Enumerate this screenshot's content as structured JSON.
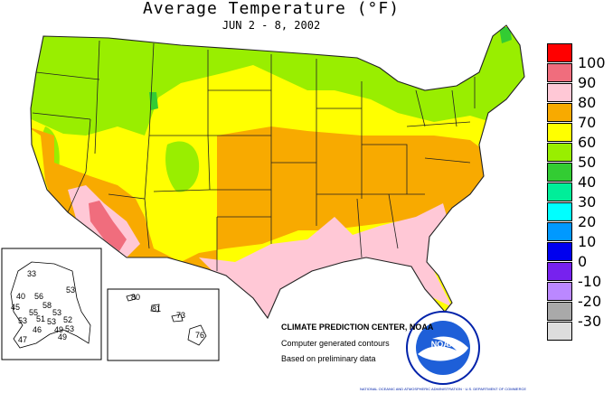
{
  "header": {
    "title": "Average Temperature (°F)",
    "subtitle": "JUN 2 - 8, 2002"
  },
  "legend": {
    "items": [
      {
        "label": "100",
        "color": "#ff0000"
      },
      {
        "label": "90",
        "color": "#f06d7d"
      },
      {
        "label": "80",
        "color": "#ffc8d6"
      },
      {
        "label": "70",
        "color": "#f8aa00"
      },
      {
        "label": "60",
        "color": "#ffff00"
      },
      {
        "label": "50",
        "color": "#99ee00"
      },
      {
        "label": "40",
        "color": "#33cc33"
      },
      {
        "label": "30",
        "color": "#00ee99"
      },
      {
        "label": "20",
        "color": "#00ffff"
      },
      {
        "label": "10",
        "color": "#0099ff"
      },
      {
        "label": "0",
        "color": "#0000ee"
      },
      {
        "label": "-10",
        "color": "#7722ee"
      },
      {
        "label": "-20",
        "color": "#bb88ff"
      },
      {
        "label": "-30",
        "color": "#a9a9a9"
      },
      {
        "extra": "",
        "color": "#dddddd"
      }
    ]
  },
  "alaska": {
    "values": [
      "33",
      "56",
      "53",
      "40",
      "58",
      "45",
      "55",
      "53",
      "53",
      "51",
      "52",
      "53",
      "46",
      "49",
      "53",
      "47",
      "49"
    ]
  },
  "hawaii": {
    "values": [
      "80",
      "81",
      "73",
      "76"
    ]
  },
  "credits": {
    "center": "CLIMATE PREDICTION CENTER, NOAA",
    "line1": "Computer generated contours",
    "line2": "Based on preliminary data"
  },
  "logo": {
    "text": "NOAA",
    "ring_text": "NATIONAL OCEANIC AND ATMOSPHERIC ADMINISTRATION · U.S. DEPARTMENT OF COMMERCE"
  }
}
